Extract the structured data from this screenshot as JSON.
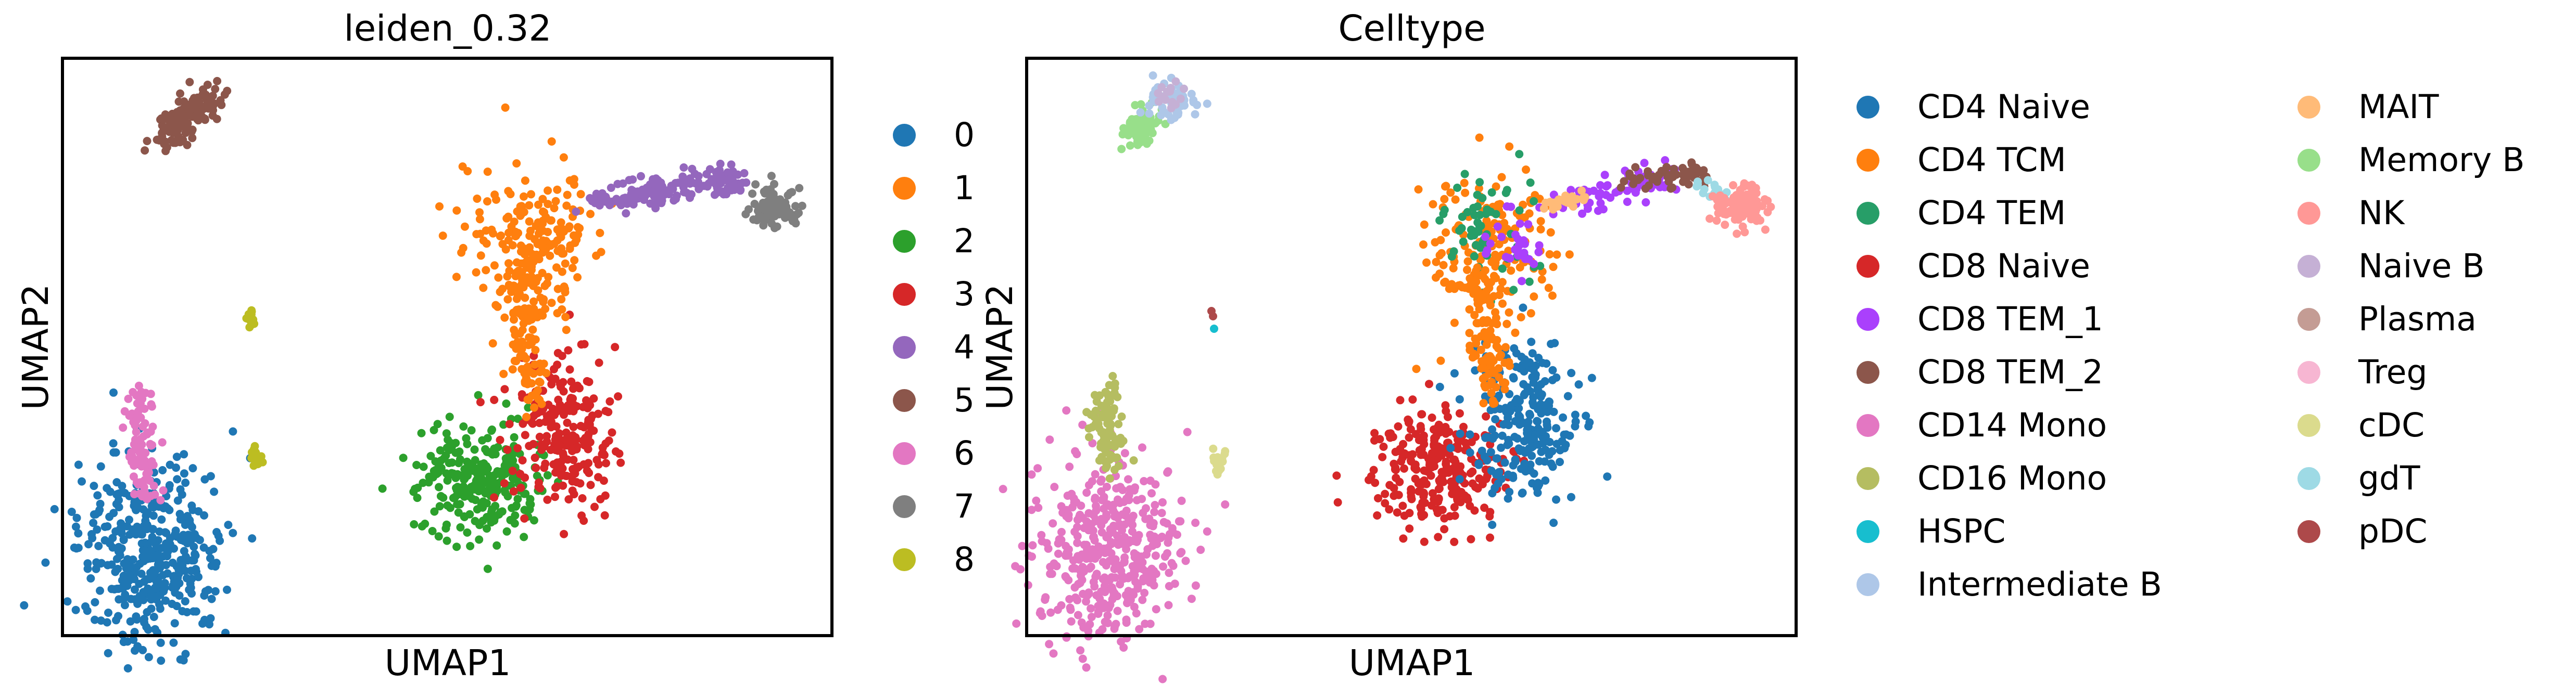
{
  "chart_data": [
    {
      "type": "scatter",
      "title": "leiden_0.32",
      "xlabel": "UMAP1",
      "ylabel": "UMAP2",
      "ticks": "none",
      "legend_position": "right",
      "legend": [
        {
          "label": "0",
          "color": "#1f77b4"
        },
        {
          "label": "1",
          "color": "#ff7f0e"
        },
        {
          "label": "2",
          "color": "#2ca02c"
        },
        {
          "label": "3",
          "color": "#d62728"
        },
        {
          "label": "4",
          "color": "#9467bd"
        },
        {
          "label": "5",
          "color": "#8c564b"
        },
        {
          "label": "6",
          "color": "#e377c2"
        },
        {
          "label": "7",
          "color": "#7f7f7f"
        },
        {
          "label": "8",
          "color": "#bcbd22"
        }
      ]
    },
    {
      "type": "scatter",
      "title": "Celltype",
      "xlabel": "UMAP1",
      "ylabel": "UMAP2",
      "ticks": "none",
      "legend_position": "right",
      "legend": [
        {
          "label": "CD4 Naive",
          "color": "#1f77b4"
        },
        {
          "label": "CD4 TCM",
          "color": "#ff7f0e"
        },
        {
          "label": "CD4 TEM",
          "color": "#279e68"
        },
        {
          "label": "CD8 Naive",
          "color": "#d62728"
        },
        {
          "label": "CD8 TEM_1",
          "color": "#aa40fc"
        },
        {
          "label": "CD8 TEM_2",
          "color": "#8c564b"
        },
        {
          "label": "CD14 Mono",
          "color": "#e377c2"
        },
        {
          "label": "CD16 Mono",
          "color": "#b5bd61"
        },
        {
          "label": "HSPC",
          "color": "#17becf"
        },
        {
          "label": "Intermediate B",
          "color": "#aec7e8"
        },
        {
          "label": "MAIT",
          "color": "#ffbb78"
        },
        {
          "label": "Memory B",
          "color": "#98df8a"
        },
        {
          "label": "NK",
          "color": "#ff9896"
        },
        {
          "label": "Naive B",
          "color": "#c5b0d5"
        },
        {
          "label": "Plasma",
          "color": "#c49c94"
        },
        {
          "label": "Treg",
          "color": "#f7b6d2"
        },
        {
          "label": "cDC",
          "color": "#dbdb8d"
        },
        {
          "label": "gdT",
          "color": "#9edae5"
        },
        {
          "label": "pDC",
          "color": "#ad494a"
        }
      ]
    }
  ]
}
